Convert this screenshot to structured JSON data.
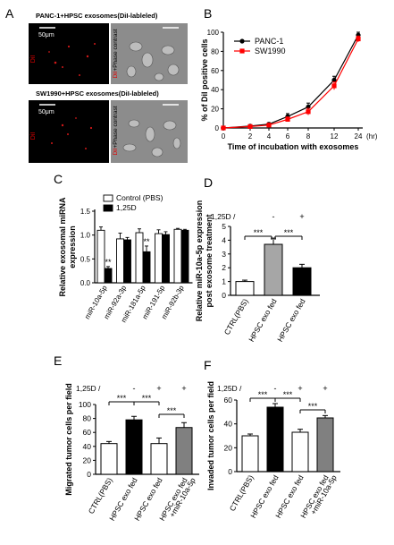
{
  "panel_letters": [
    "A",
    "B",
    "C",
    "D",
    "E",
    "F"
  ],
  "micro": {
    "top_title": "PANC-1+HPSC exosomes(DiI-lableled)",
    "bottom_title": "SW1990+HPSC exosomes(DiI-lableled)",
    "scale_label": "50μm",
    "dil_label": "DiI",
    "phase_label_red": "DiI",
    "phase_label_rest": "+Phase contrast"
  },
  "chart_data": [
    {
      "panel": "B",
      "type": "line",
      "x": [
        0,
        2,
        4,
        6,
        8,
        12,
        24
      ],
      "x_tick_labels": [
        "0",
        "2",
        "4",
        "6",
        "8",
        "12",
        "24"
      ],
      "x_unit_label": "(hr)",
      "xlabel": "Time of incubation with exosomes",
      "ylabel": "% of DiI positive cells",
      "ylim": [
        0,
        100
      ],
      "y_ticks": [
        0,
        20,
        40,
        60,
        80,
        100
      ],
      "legend_position": "top-left",
      "series": [
        {
          "name": "PANC-1",
          "color": "#000000",
          "marker": "circle",
          "values": [
            0,
            2,
            4,
            12,
            22,
            50,
            97
          ],
          "errors": [
            0.5,
            1,
            1.5,
            3,
            4,
            4,
            3
          ]
        },
        {
          "name": "SW1990",
          "color": "#ff0000",
          "marker": "square",
          "values": [
            0,
            1.5,
            3,
            9,
            17,
            44,
            93
          ],
          "errors": [
            0.5,
            1,
            1.5,
            2.5,
            3.5,
            4,
            3
          ]
        }
      ]
    },
    {
      "panel": "C",
      "type": "bar",
      "categories": [
        "miR-10a-5p",
        "miR-92a-3p",
        "miR-181a-5p",
        "miR-191-5p",
        "miR-92b-3p"
      ],
      "ylabel": "Relative exosomal miRNA expression",
      "ylabel_lines": [
        "Relative exosomal miRNA",
        "expression"
      ],
      "ylim": [
        0,
        1.5
      ],
      "y_ticks": [
        0.0,
        0.5,
        1.0,
        1.5
      ],
      "legend_position": "top",
      "series": [
        {
          "name": "Control (PBS)",
          "color": "#ffffff",
          "values": [
            1.1,
            0.92,
            1.05,
            1.03,
            1.12
          ],
          "errors": [
            0.07,
            0.12,
            0.08,
            0.08,
            0.02
          ]
        },
        {
          "name": "1,25D",
          "color": "#000000",
          "values": [
            0.3,
            0.9,
            0.65,
            1.01,
            1.1
          ],
          "errors": [
            0.04,
            0.05,
            0.12,
            0.06,
            0.02
          ]
        }
      ],
      "annotations": [
        "**",
        "**"
      ]
    },
    {
      "panel": "D",
      "type": "bar",
      "treatment_label": "1,25D",
      "treatment_marks": [
        "-",
        "+"
      ],
      "categories": [
        "CTRL(PBS)",
        "HPSC exo fed",
        "HPSC exo fed"
      ],
      "colors": [
        "#ffffff",
        "#a6a6a6",
        "#000000"
      ],
      "values": [
        1.0,
        3.7,
        2.0
      ],
      "errors": [
        0.1,
        0.45,
        0.25
      ],
      "ylabel": "Relative miR-10a-5p expression post exosome treatment",
      "ylabel_lines": [
        "Relative miR-10a-5p expression",
        "post exosome treatment"
      ],
      "ylim": [
        0,
        5
      ],
      "y_ticks": [
        0,
        1,
        2,
        3,
        4,
        5
      ],
      "significance": [
        "***",
        "***"
      ]
    },
    {
      "panel": "E",
      "type": "bar",
      "treatment_label": "1,25D",
      "treatment_marks": [
        "-",
        "+",
        "+"
      ],
      "categories": [
        "CTRL(PBS)",
        "HPSC exo fed",
        "HPSC exo fed",
        "HPSC exo fed +miR-10a-5p"
      ],
      "category_lines": [
        [
          "CTRL(PBS)"
        ],
        [
          "HPSC exo fed"
        ],
        [
          "HPSC exo fed"
        ],
        [
          "HPSC exo fed",
          "+miR-10a-5p"
        ]
      ],
      "colors": [
        "#ffffff",
        "#000000",
        "#ffffff",
        "#808080"
      ],
      "values": [
        44,
        78,
        44,
        67
      ],
      "errors": [
        3,
        5,
        8,
        7
      ],
      "ylabel": "Migrated tumor cells per field",
      "ylim": [
        0,
        100
      ],
      "y_ticks": [
        0,
        20,
        40,
        60,
        80,
        100
      ],
      "significance": [
        "***",
        "***",
        "***"
      ]
    },
    {
      "panel": "F",
      "type": "bar",
      "treatment_label": "1,25D",
      "treatment_marks": [
        "-",
        "+",
        "+"
      ],
      "categories": [
        "CTRL(PBS)",
        "HPSC exo fed",
        "HPSC exo fed",
        "HPSC exo fed +miR-10a-5p"
      ],
      "category_lines": [
        [
          "CTRL(PBS)"
        ],
        [
          "HPSC exo fed"
        ],
        [
          "HPSC exo fed"
        ],
        [
          "HPSC exo fed",
          "+miR-10a-5p"
        ]
      ],
      "colors": [
        "#ffffff",
        "#000000",
        "#ffffff",
        "#808080"
      ],
      "values": [
        30,
        54,
        33,
        45
      ],
      "errors": [
        1.5,
        3,
        2.5,
        2
      ],
      "ylabel": "Invaded tumor cells per field",
      "ylim": [
        0,
        60
      ],
      "y_ticks": [
        0,
        20,
        40,
        60
      ],
      "significance": [
        "***",
        "***",
        "***"
      ]
    }
  ]
}
